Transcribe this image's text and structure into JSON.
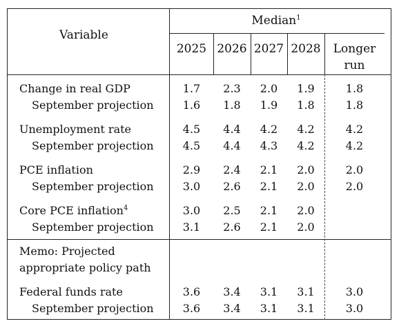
{
  "header": {
    "variable_label": "Variable",
    "median_label": "Median",
    "median_note": "1",
    "years": [
      "2025",
      "2026",
      "2027",
      "2028"
    ],
    "longer_run": [
      "Longer",
      "run"
    ]
  },
  "rows": [
    {
      "label": "Change in real GDP",
      "values": [
        "1.7",
        "2.3",
        "2.0",
        "1.9",
        "1.8"
      ]
    },
    {
      "label": "September projection",
      "values": [
        "1.6",
        "1.8",
        "1.9",
        "1.8",
        "1.8"
      ]
    },
    {
      "label": "Unemployment rate",
      "values": [
        "4.5",
        "4.4",
        "4.2",
        "4.2",
        "4.2"
      ]
    },
    {
      "label": "September projection",
      "values": [
        "4.5",
        "4.4",
        "4.3",
        "4.2",
        "4.2"
      ]
    },
    {
      "label": "PCE inflation",
      "values": [
        "2.9",
        "2.4",
        "2.1",
        "2.0",
        "2.0"
      ]
    },
    {
      "label": "September projection",
      "values": [
        "3.0",
        "2.6",
        "2.1",
        "2.0",
        "2.0"
      ]
    },
    {
      "label": "Core PCE inflation",
      "note": "4",
      "values": [
        "3.0",
        "2.5",
        "2.1",
        "2.0",
        ""
      ]
    },
    {
      "label": "September projection",
      "values": [
        "3.1",
        "2.6",
        "2.1",
        "2.0",
        ""
      ]
    },
    {
      "label": "Federal funds rate",
      "values": [
        "3.6",
        "3.4",
        "3.1",
        "3.1",
        "3.0"
      ]
    },
    {
      "label": "September projection",
      "values": [
        "3.6",
        "3.4",
        "3.1",
        "3.1",
        "3.0"
      ]
    }
  ],
  "memo": {
    "line1": "Memo: Projected",
    "line2": "appropriate policy path"
  }
}
